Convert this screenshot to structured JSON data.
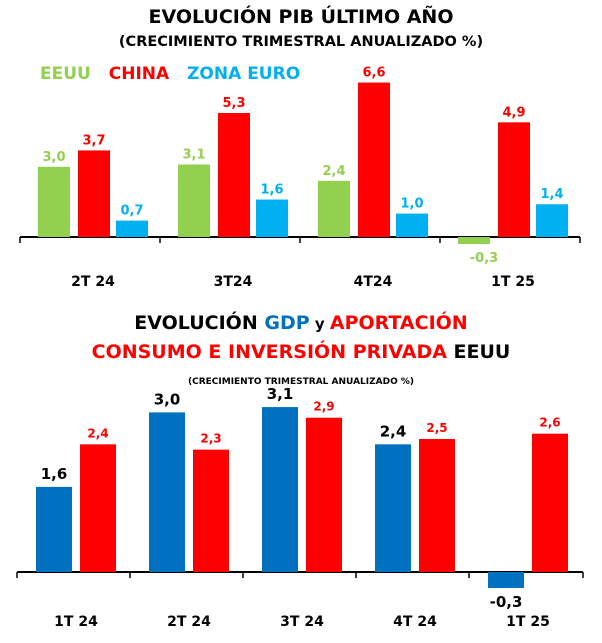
{
  "chart1": {
    "title": "EVOLUCIÓN PIB ÚLTIMO AÑO",
    "subtitle": "(CRECIMIENTO TRIMESTRAL ANUALIZADO %)",
    "legend": [
      {
        "name": "EEUU",
        "color": "#92d050"
      },
      {
        "name": "CHINA",
        "color": "#ff0000"
      },
      {
        "name": "ZONA EURO",
        "color": "#00b0f0"
      }
    ]
  },
  "chart2": {
    "title_parts": [
      {
        "text": "EVOLUCIÓN ",
        "color": "#000000"
      },
      {
        "text": "GDP",
        "color": "#0070c0"
      },
      {
        "text": " y ",
        "color": "#000000"
      },
      {
        "text": "APORTACIÓN",
        "color": "#ff0000"
      }
    ],
    "title2_parts": [
      {
        "text": "CONSUMO E INVERSIÓN PRIVADA ",
        "color": "#ff0000"
      },
      {
        "text": "EEUU",
        "color": "#000000"
      }
    ],
    "subtitle": "(CRECIMIENTO TRIMESTRAL ANUALIZADO %)"
  },
  "chart_data": [
    {
      "type": "bar",
      "title": "EVOLUCIÓN PIB ÚLTIMO AÑO",
      "subtitle": "(CRECIMIENTO TRIMESTRAL ANUALIZADO %)",
      "categories": [
        "2T 24",
        "3T24",
        "4T24",
        "1T 25"
      ],
      "series": [
        {
          "name": "EEUU",
          "color": "#92d050",
          "values": [
            3.0,
            3.1,
            2.4,
            -0.3
          ],
          "labels": [
            "3,0",
            "3,1",
            "2,4",
            "-0,3"
          ]
        },
        {
          "name": "CHINA",
          "color": "#ff0000",
          "values": [
            3.7,
            5.3,
            6.6,
            4.9
          ],
          "labels": [
            "3,7",
            "5,3",
            "6,6",
            "4,9"
          ]
        },
        {
          "name": "ZONA EURO",
          "color": "#00b0f0",
          "values": [
            0.7,
            1.6,
            1.0,
            1.4
          ],
          "labels": [
            "0,7",
            "1,6",
            "1,0",
            "1,4"
          ]
        }
      ],
      "legend_position": "top-left",
      "grid": false
    },
    {
      "type": "bar",
      "title": "EVOLUCIÓN GDP y APORTACIÓN CONSUMO E INVERSIÓN PRIVADA EEUU",
      "subtitle": "(CRECIMIENTO TRIMESTRAL ANUALIZADO %)",
      "categories": [
        "1T 24",
        "2T 24",
        "3T 24",
        "4T 24",
        "1T 25"
      ],
      "series": [
        {
          "color": "#0070c0",
          "values": [
            1.6,
            3.0,
            3.1,
            2.4,
            -0.3
          ],
          "labels": [
            "1,6",
            "3,0",
            "3,1",
            "2,4",
            "-0,3"
          ],
          "label_color": "#000000"
        },
        {
          "color": "#ff0000",
          "values": [
            2.4,
            2.3,
            2.9,
            2.5,
            2.6
          ],
          "labels": [
            "2,4",
            "2,3",
            "2,9",
            "2,5",
            "2,6"
          ],
          "label_color": "#ff0000"
        }
      ],
      "grid": false
    }
  ]
}
